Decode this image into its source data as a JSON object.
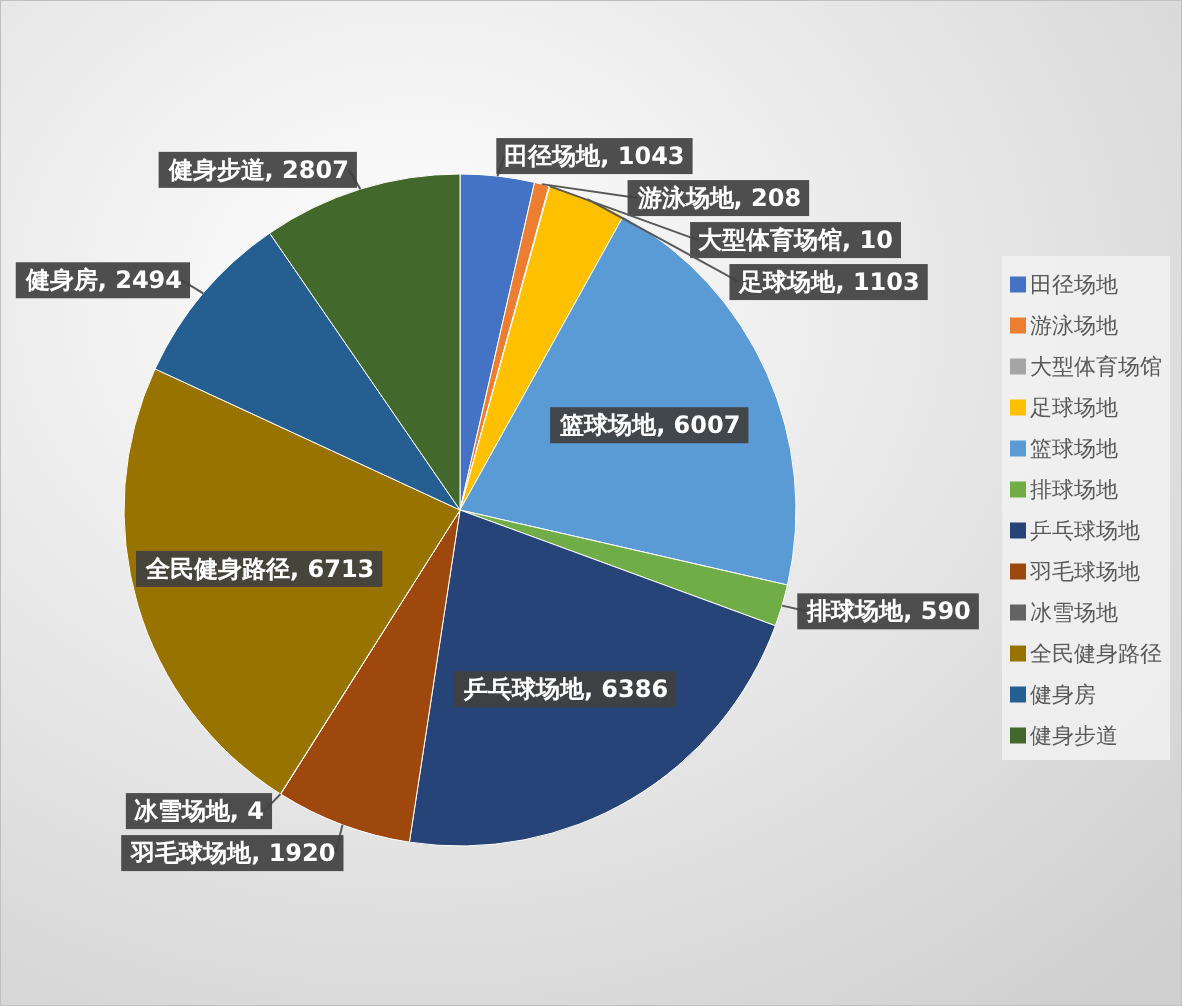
{
  "chart_data": {
    "type": "pie",
    "categories": [
      "田径场地",
      "游泳场地",
      "大型体育场馆",
      "足球场地",
      "篮球场地",
      "排球场地",
      "乒乓球场地",
      "羽毛球场地",
      "冰雪场地",
      "全民健身路径",
      "健身房",
      "健身步道"
    ],
    "values": [
      1043,
      208,
      10,
      1103,
      6007,
      590,
      6386,
      1920,
      4,
      6713,
      2494,
      2807
    ],
    "value_labels": [
      ", 1043",
      ", 208",
      ", 10",
      ", 1103",
      ", 6007",
      ", 590",
      ", 6386",
      ", 1920",
      ", 4",
      ", 6713",
      ", 2494",
      ", 2807"
    ],
    "colors": [
      "#4472c4",
      "#ed7d31",
      "#a5a5a5",
      "#ffc000",
      "#5b9bd5",
      "#70ad47",
      "#264478",
      "#9e480e",
      "#636363",
      "#997300",
      "#255e91",
      "#43682b"
    ],
    "legend": "right"
  }
}
